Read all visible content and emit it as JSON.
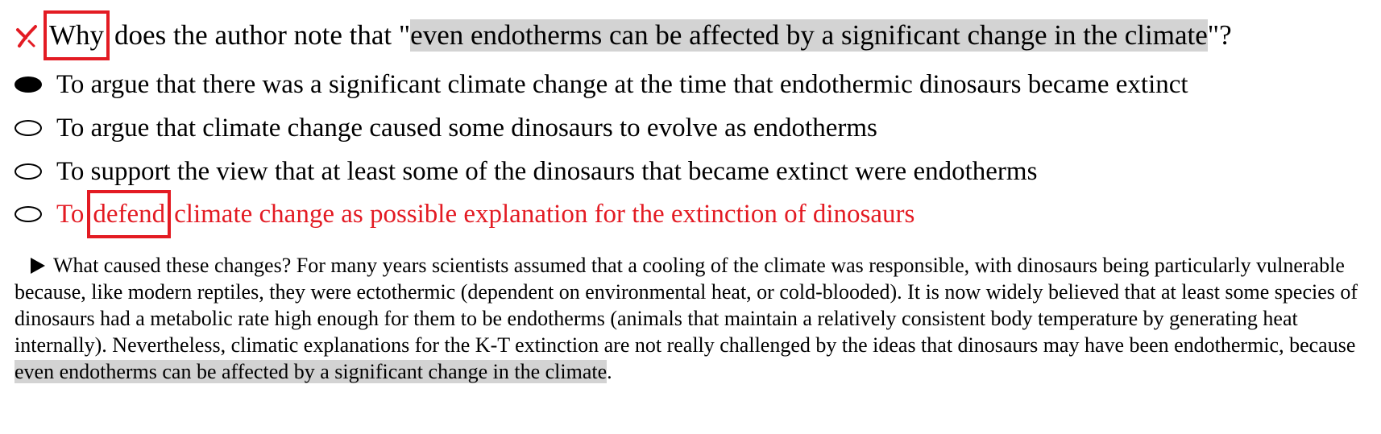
{
  "question": {
    "word_boxed": "Why",
    "before_quote": " does the author note that \"",
    "quote": "even endotherms can be affected by a significant change in the climate",
    "after_quote": "\"?"
  },
  "options": [
    {
      "text": "To argue that there was a significant climate change at the time that endothermic dinosaurs became extinct",
      "selected": true
    },
    {
      "text": "To argue that climate change caused some dinosaurs to evolve as endotherms",
      "selected": false
    },
    {
      "text": "To support the view that at least some of the dinosaurs that became extinct were endotherms",
      "selected": false
    },
    {
      "prefix": "To",
      "boxed": "defend",
      "rest": "climate change as possible explanation for the extinction of dinosaurs",
      "selected": false
    }
  ],
  "passage": {
    "text": "What caused these changes? For many years scientists assumed that a cooling of the climate was responsible, with dinosaurs being particularly vulnerable because, like modern reptiles, they were ectothermic (dependent on environmental heat, or cold-blooded). It is now widely believed that at least some species of dinosaurs had a metabolic rate high enough for them to be endotherms (animals that maintain a relatively consistent body temperature by generating heat internally). Nevertheless, climatic explanations for the K-T extinction are not really challenged by the ideas that dinosaurs may have been endothermic, because ",
    "highlight": "even endotherms can be affected by a significant change in the climate",
    "end": "."
  },
  "colors": {
    "accent_red": "#e31b23",
    "highlight_gray": "#d3d3d3"
  },
  "icons": {
    "wrong_mark": "x-mark-icon",
    "passage_marker": "triangle-right-icon"
  }
}
